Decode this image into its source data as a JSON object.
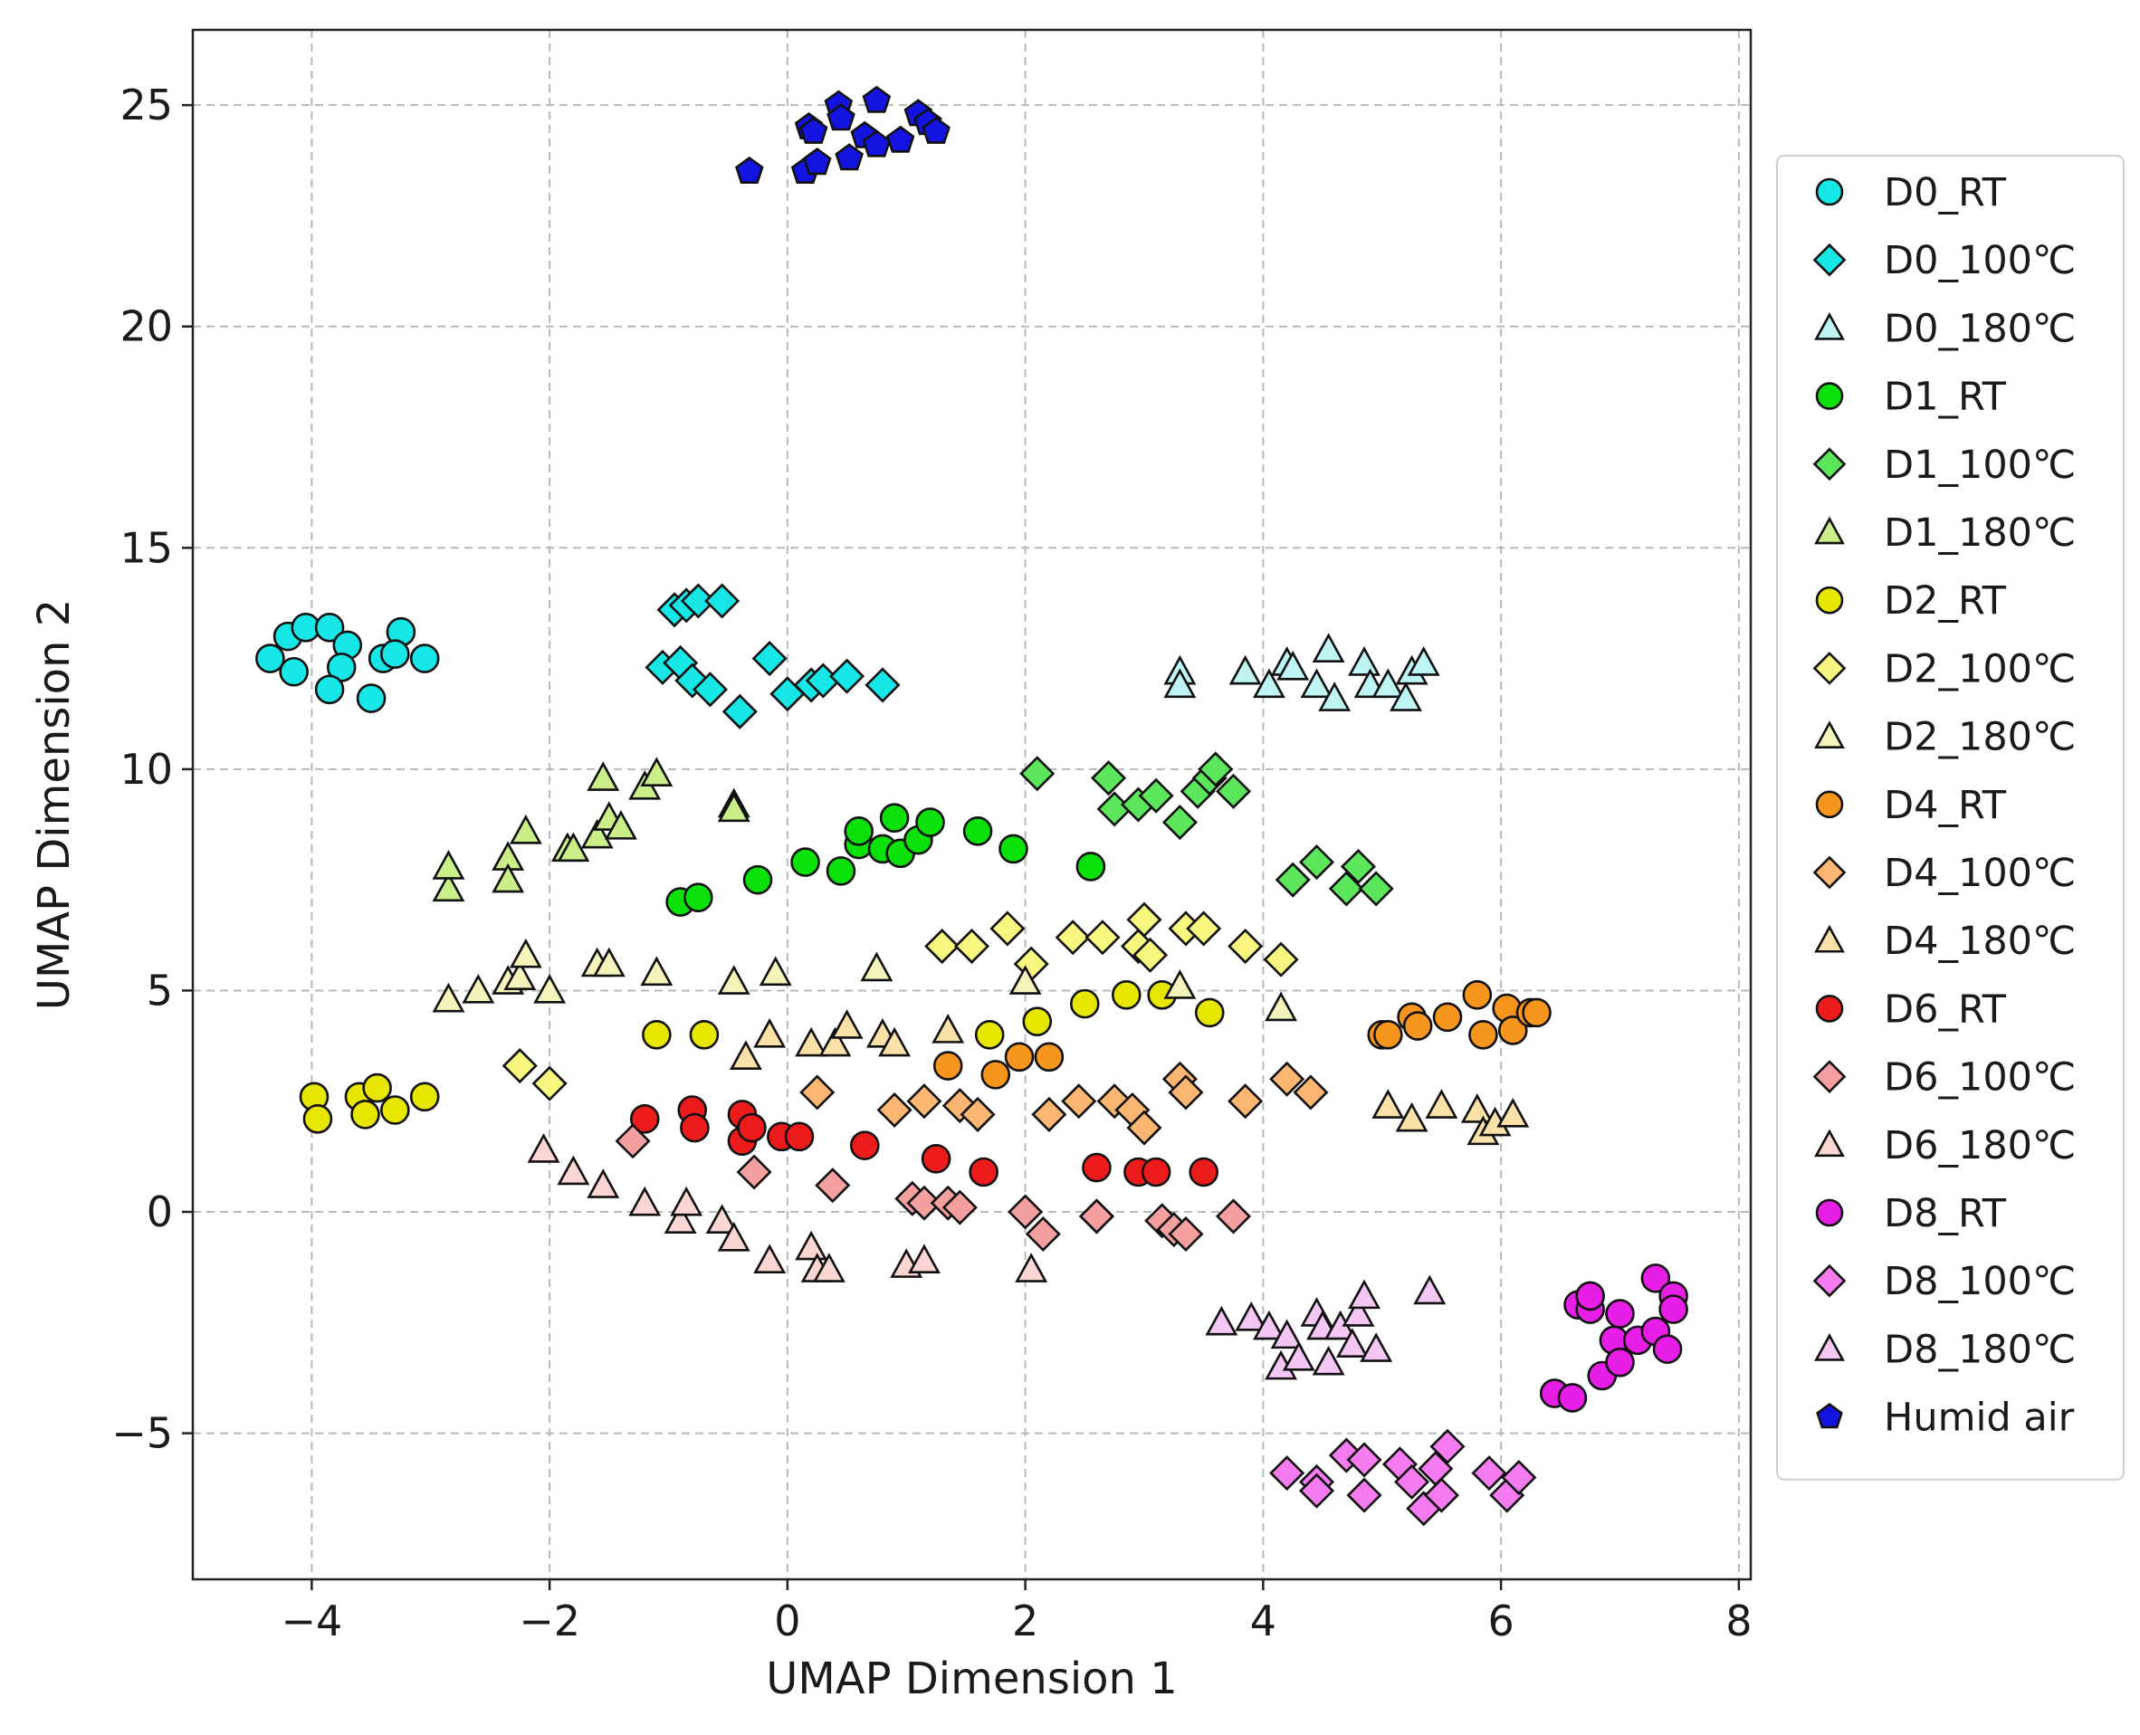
{
  "chart_data": {
    "type": "scatter",
    "xlabel": "UMAP Dimension 1",
    "ylabel": "UMAP Dimension 2",
    "xlim": [
      -5,
      8.1
    ],
    "ylim": [
      -8.3,
      26.7
    ],
    "xticks": [
      -4,
      -2,
      0,
      2,
      4,
      6,
      8
    ],
    "yticks": [
      -5,
      0,
      5,
      10,
      15,
      20,
      25
    ],
    "xtick_labels": [
      "−4",
      "−2",
      "0",
      "2",
      "4",
      "6",
      "8"
    ],
    "ytick_labels": [
      "−5",
      "0",
      "5",
      "10",
      "15",
      "20",
      "25"
    ],
    "grid": true,
    "legend_position": "outside-right",
    "series": [
      {
        "name": "D0_RT",
        "marker": "circle",
        "color": "#17e6e6",
        "x": [
          -4.35,
          -4.2,
          -4.05,
          -3.85,
          -3.7,
          -3.75,
          -3.85,
          -4.15,
          -3.5,
          -3.4,
          -3.25,
          -3.3,
          -3.05
        ],
        "y": [
          12.5,
          13.0,
          13.2,
          13.2,
          12.8,
          12.3,
          11.8,
          12.2,
          11.6,
          12.5,
          13.1,
          12.6,
          12.5
        ]
      },
      {
        "name": "D0_100℃",
        "marker": "diamond",
        "color": "#17e6e6",
        "x": [
          -0.95,
          -0.85,
          -0.75,
          -0.55,
          -1.05,
          -0.9,
          -0.8,
          -0.65,
          -0.4,
          -0.15,
          0.0,
          0.2,
          0.3,
          0.5,
          0.8
        ],
        "y": [
          13.6,
          13.7,
          13.8,
          13.8,
          12.3,
          12.4,
          12.0,
          11.8,
          11.3,
          12.5,
          11.7,
          11.9,
          12.0,
          12.1,
          11.9
        ]
      },
      {
        "name": "D0_180℃",
        "marker": "triangle",
        "color": "#bff4f4",
        "x": [
          3.3,
          3.3,
          3.85,
          4.05,
          4.2,
          4.25,
          4.45,
          4.55,
          4.6,
          4.85,
          4.9,
          5.05,
          5.25,
          5.2,
          5.35
        ],
        "y": [
          12.2,
          11.9,
          12.2,
          11.9,
          12.4,
          12.3,
          11.9,
          12.7,
          11.6,
          12.4,
          11.9,
          11.9,
          12.2,
          11.6,
          12.4
        ]
      },
      {
        "name": "D1_RT",
        "marker": "circle",
        "color": "#0be00b",
        "x": [
          -0.9,
          -0.75,
          -0.25,
          0.15,
          0.45,
          0.6,
          0.6,
          0.8,
          0.9,
          0.95,
          1.1,
          1.2,
          1.6,
          1.9,
          2.55
        ],
        "y": [
          7.0,
          7.1,
          7.5,
          7.9,
          7.7,
          8.3,
          8.6,
          8.2,
          8.9,
          8.1,
          8.4,
          8.8,
          8.6,
          8.2,
          7.8
        ]
      },
      {
        "name": "D1_100℃",
        "marker": "diamond",
        "color": "#5ce65c",
        "x": [
          2.1,
          2.7,
          2.75,
          2.95,
          3.1,
          3.3,
          3.45,
          3.55,
          3.6,
          3.75,
          4.25,
          4.45,
          4.7,
          4.8,
          4.95
        ],
        "y": [
          9.9,
          9.8,
          9.1,
          9.2,
          9.4,
          8.8,
          9.5,
          9.8,
          10.0,
          9.5,
          7.5,
          7.9,
          7.3,
          7.8,
          7.3
        ]
      },
      {
        "name": "D1_180℃",
        "marker": "triangle",
        "color": "#cbef88",
        "x": [
          -2.85,
          -2.85,
          -2.35,
          -2.35,
          -2.2,
          -1.85,
          -1.8,
          -1.6,
          -1.55,
          -1.5,
          -1.4,
          -1.2,
          -1.1,
          -0.45,
          -0.45
        ],
        "y": [
          7.3,
          7.8,
          8.0,
          7.5,
          8.6,
          8.2,
          8.2,
          8.5,
          9.8,
          8.9,
          8.7,
          9.6,
          9.9,
          9.2,
          9.1
        ]
      },
      {
        "name": "D2_RT",
        "marker": "circle",
        "color": "#e6e600",
        "x": [
          -3.98,
          -3.95,
          -3.6,
          -3.55,
          -3.45,
          -3.3,
          -3.05,
          -1.1,
          -0.7,
          1.7,
          2.1,
          2.5,
          2.85,
          3.15,
          3.55
        ],
        "y": [
          2.6,
          2.1,
          2.6,
          2.2,
          2.8,
          2.3,
          2.6,
          4.0,
          4.0,
          4.0,
          4.3,
          4.7,
          4.9,
          4.9,
          4.5
        ]
      },
      {
        "name": "D2_100℃",
        "marker": "diamond",
        "color": "#f7f780",
        "x": [
          -2.25,
          -2.0,
          1.3,
          1.55,
          1.85,
          2.05,
          2.4,
          2.65,
          2.95,
          3.0,
          3.05,
          3.35,
          3.5,
          3.85,
          4.15
        ],
        "y": [
          3.3,
          2.9,
          6.0,
          6.0,
          6.4,
          5.6,
          6.2,
          6.2,
          6.0,
          6.6,
          5.8,
          6.4,
          6.4,
          6.0,
          5.7
        ]
      },
      {
        "name": "D2_180℃",
        "marker": "triangle",
        "color": "#f3f3bb",
        "x": [
          -2.85,
          -2.6,
          -2.35,
          -2.25,
          -2.2,
          -2.0,
          -1.6,
          -1.5,
          -1.1,
          -0.45,
          -0.1,
          0.75,
          2.0,
          3.3,
          4.15
        ],
        "y": [
          4.8,
          5.0,
          5.2,
          5.3,
          5.8,
          5.0,
          5.6,
          5.6,
          5.4,
          5.2,
          5.4,
          5.5,
          5.2,
          5.1,
          4.6
        ]
      },
      {
        "name": "D4_RT",
        "marker": "circle",
        "color": "#f6961f",
        "x": [
          1.35,
          1.75,
          1.95,
          2.2,
          5.0,
          5.05,
          5.25,
          5.3,
          5.55,
          5.8,
          5.85,
          6.05,
          6.1,
          6.25,
          6.3
        ],
        "y": [
          3.3,
          3.1,
          3.5,
          3.5,
          4.0,
          4.0,
          4.4,
          4.2,
          4.4,
          4.9,
          4.0,
          4.6,
          4.1,
          4.5,
          4.5
        ]
      },
      {
        "name": "D4_100℃",
        "marker": "diamond",
        "color": "#fbb772",
        "x": [
          0.25,
          0.9,
          1.15,
          1.45,
          1.6,
          2.2,
          2.45,
          2.75,
          2.9,
          3.0,
          3.3,
          3.35,
          3.85,
          4.2,
          4.4
        ],
        "y": [
          2.7,
          2.3,
          2.5,
          2.4,
          2.2,
          2.2,
          2.5,
          2.5,
          2.3,
          1.9,
          3.0,
          2.7,
          2.5,
          3.0,
          2.7
        ]
      },
      {
        "name": "D4_180℃",
        "marker": "triangle",
        "color": "#f9e1a8",
        "x": [
          -0.35,
          -0.15,
          0.2,
          0.4,
          0.5,
          0.8,
          0.9,
          1.35,
          5.05,
          5.25,
          5.5,
          5.8,
          5.85,
          5.95,
          6.1
        ],
        "y": [
          3.5,
          4.0,
          3.8,
          3.8,
          4.2,
          4.0,
          3.8,
          4.1,
          2.4,
          2.1,
          2.4,
          2.3,
          1.8,
          2.0,
          2.2
        ]
      },
      {
        "name": "D6_RT",
        "marker": "circle",
        "color": "#ed1c1c",
        "x": [
          -1.2,
          -0.8,
          -0.78,
          -0.38,
          -0.38,
          -0.3,
          -0.05,
          0.1,
          0.65,
          1.25,
          1.65,
          2.6,
          2.95,
          3.1,
          3.5
        ],
        "y": [
          2.1,
          2.3,
          1.9,
          2.2,
          1.6,
          1.9,
          1.7,
          1.7,
          1.5,
          1.2,
          0.9,
          1.0,
          0.9,
          0.9,
          0.9
        ]
      },
      {
        "name": "D6_100℃",
        "marker": "diamond",
        "color": "#f5a0a0",
        "x": [
          -1.3,
          -0.28,
          0.38,
          1.05,
          1.15,
          1.35,
          1.45,
          2.0,
          2.15,
          2.6,
          2.6,
          3.15,
          3.25,
          3.35,
          3.75
        ],
        "y": [
          1.6,
          0.9,
          0.6,
          0.3,
          0.2,
          0.2,
          0.1,
          0.0,
          -0.5,
          -0.1,
          -0.1,
          -0.2,
          -0.4,
          -0.5,
          -0.1
        ]
      },
      {
        "name": "D6_180℃",
        "marker": "triangle",
        "color": "#fbd6d2",
        "x": [
          -2.05,
          -1.8,
          -1.55,
          -1.2,
          -0.9,
          -0.85,
          -0.55,
          -0.45,
          -0.15,
          0.2,
          0.25,
          0.35,
          1.0,
          1.15,
          2.05
        ],
        "y": [
          1.4,
          0.9,
          0.6,
          0.2,
          -0.2,
          0.2,
          -0.2,
          -0.6,
          -1.1,
          -0.8,
          -1.3,
          -1.3,
          -1.2,
          -1.1,
          -1.3
        ]
      },
      {
        "name": "D8_RT",
        "marker": "circle",
        "color": "#e61ee6",
        "x": [
          6.45,
          6.6,
          6.65,
          6.75,
          6.75,
          6.85,
          6.95,
          7.0,
          7.0,
          7.15,
          7.3,
          7.3,
          7.4,
          7.45,
          7.45
        ],
        "y": [
          -4.1,
          -4.2,
          -2.1,
          -2.2,
          -1.9,
          -3.7,
          -2.9,
          -3.4,
          -2.3,
          -2.9,
          -2.7,
          -1.5,
          -3.1,
          -1.9,
          -2.2
        ]
      },
      {
        "name": "D8_100℃",
        "marker": "diamond",
        "color": "#f57cf0",
        "x": [
          4.2,
          4.45,
          4.45,
          4.7,
          4.85,
          4.85,
          5.15,
          5.25,
          5.35,
          5.45,
          5.5,
          5.55,
          5.9,
          6.05,
          6.15
        ],
        "y": [
          -5.9,
          -6.1,
          -6.3,
          -5.5,
          -5.6,
          -6.4,
          -5.7,
          -6.1,
          -6.7,
          -5.8,
          -6.4,
          -5.3,
          -5.9,
          -6.4,
          -6.0
        ]
      },
      {
        "name": "D8_180℃",
        "marker": "triangle",
        "color": "#f3c6f3",
        "x": [
          3.65,
          3.9,
          4.05,
          4.15,
          4.2,
          4.3,
          4.45,
          4.5,
          4.55,
          4.65,
          4.75,
          4.8,
          4.85,
          4.95,
          5.4
        ],
        "y": [
          -2.5,
          -2.4,
          -2.6,
          -3.5,
          -2.8,
          -3.3,
          -2.3,
          -2.6,
          -3.4,
          -2.6,
          -3.0,
          -2.3,
          -1.9,
          -3.1,
          -1.8
        ]
      },
      {
        "name": "Humid air",
        "marker": "pentagon",
        "color": "#1414e0",
        "x": [
          -0.32,
          0.15,
          0.18,
          0.25,
          0.22,
          0.43,
          0.45,
          0.52,
          0.65,
          0.75,
          0.75,
          0.95,
          1.1,
          1.18,
          1.25
        ],
        "y": [
          23.5,
          23.5,
          24.5,
          23.7,
          24.4,
          25.0,
          24.7,
          23.8,
          24.3,
          24.1,
          25.1,
          24.2,
          24.8,
          24.6,
          24.4
        ]
      }
    ]
  }
}
